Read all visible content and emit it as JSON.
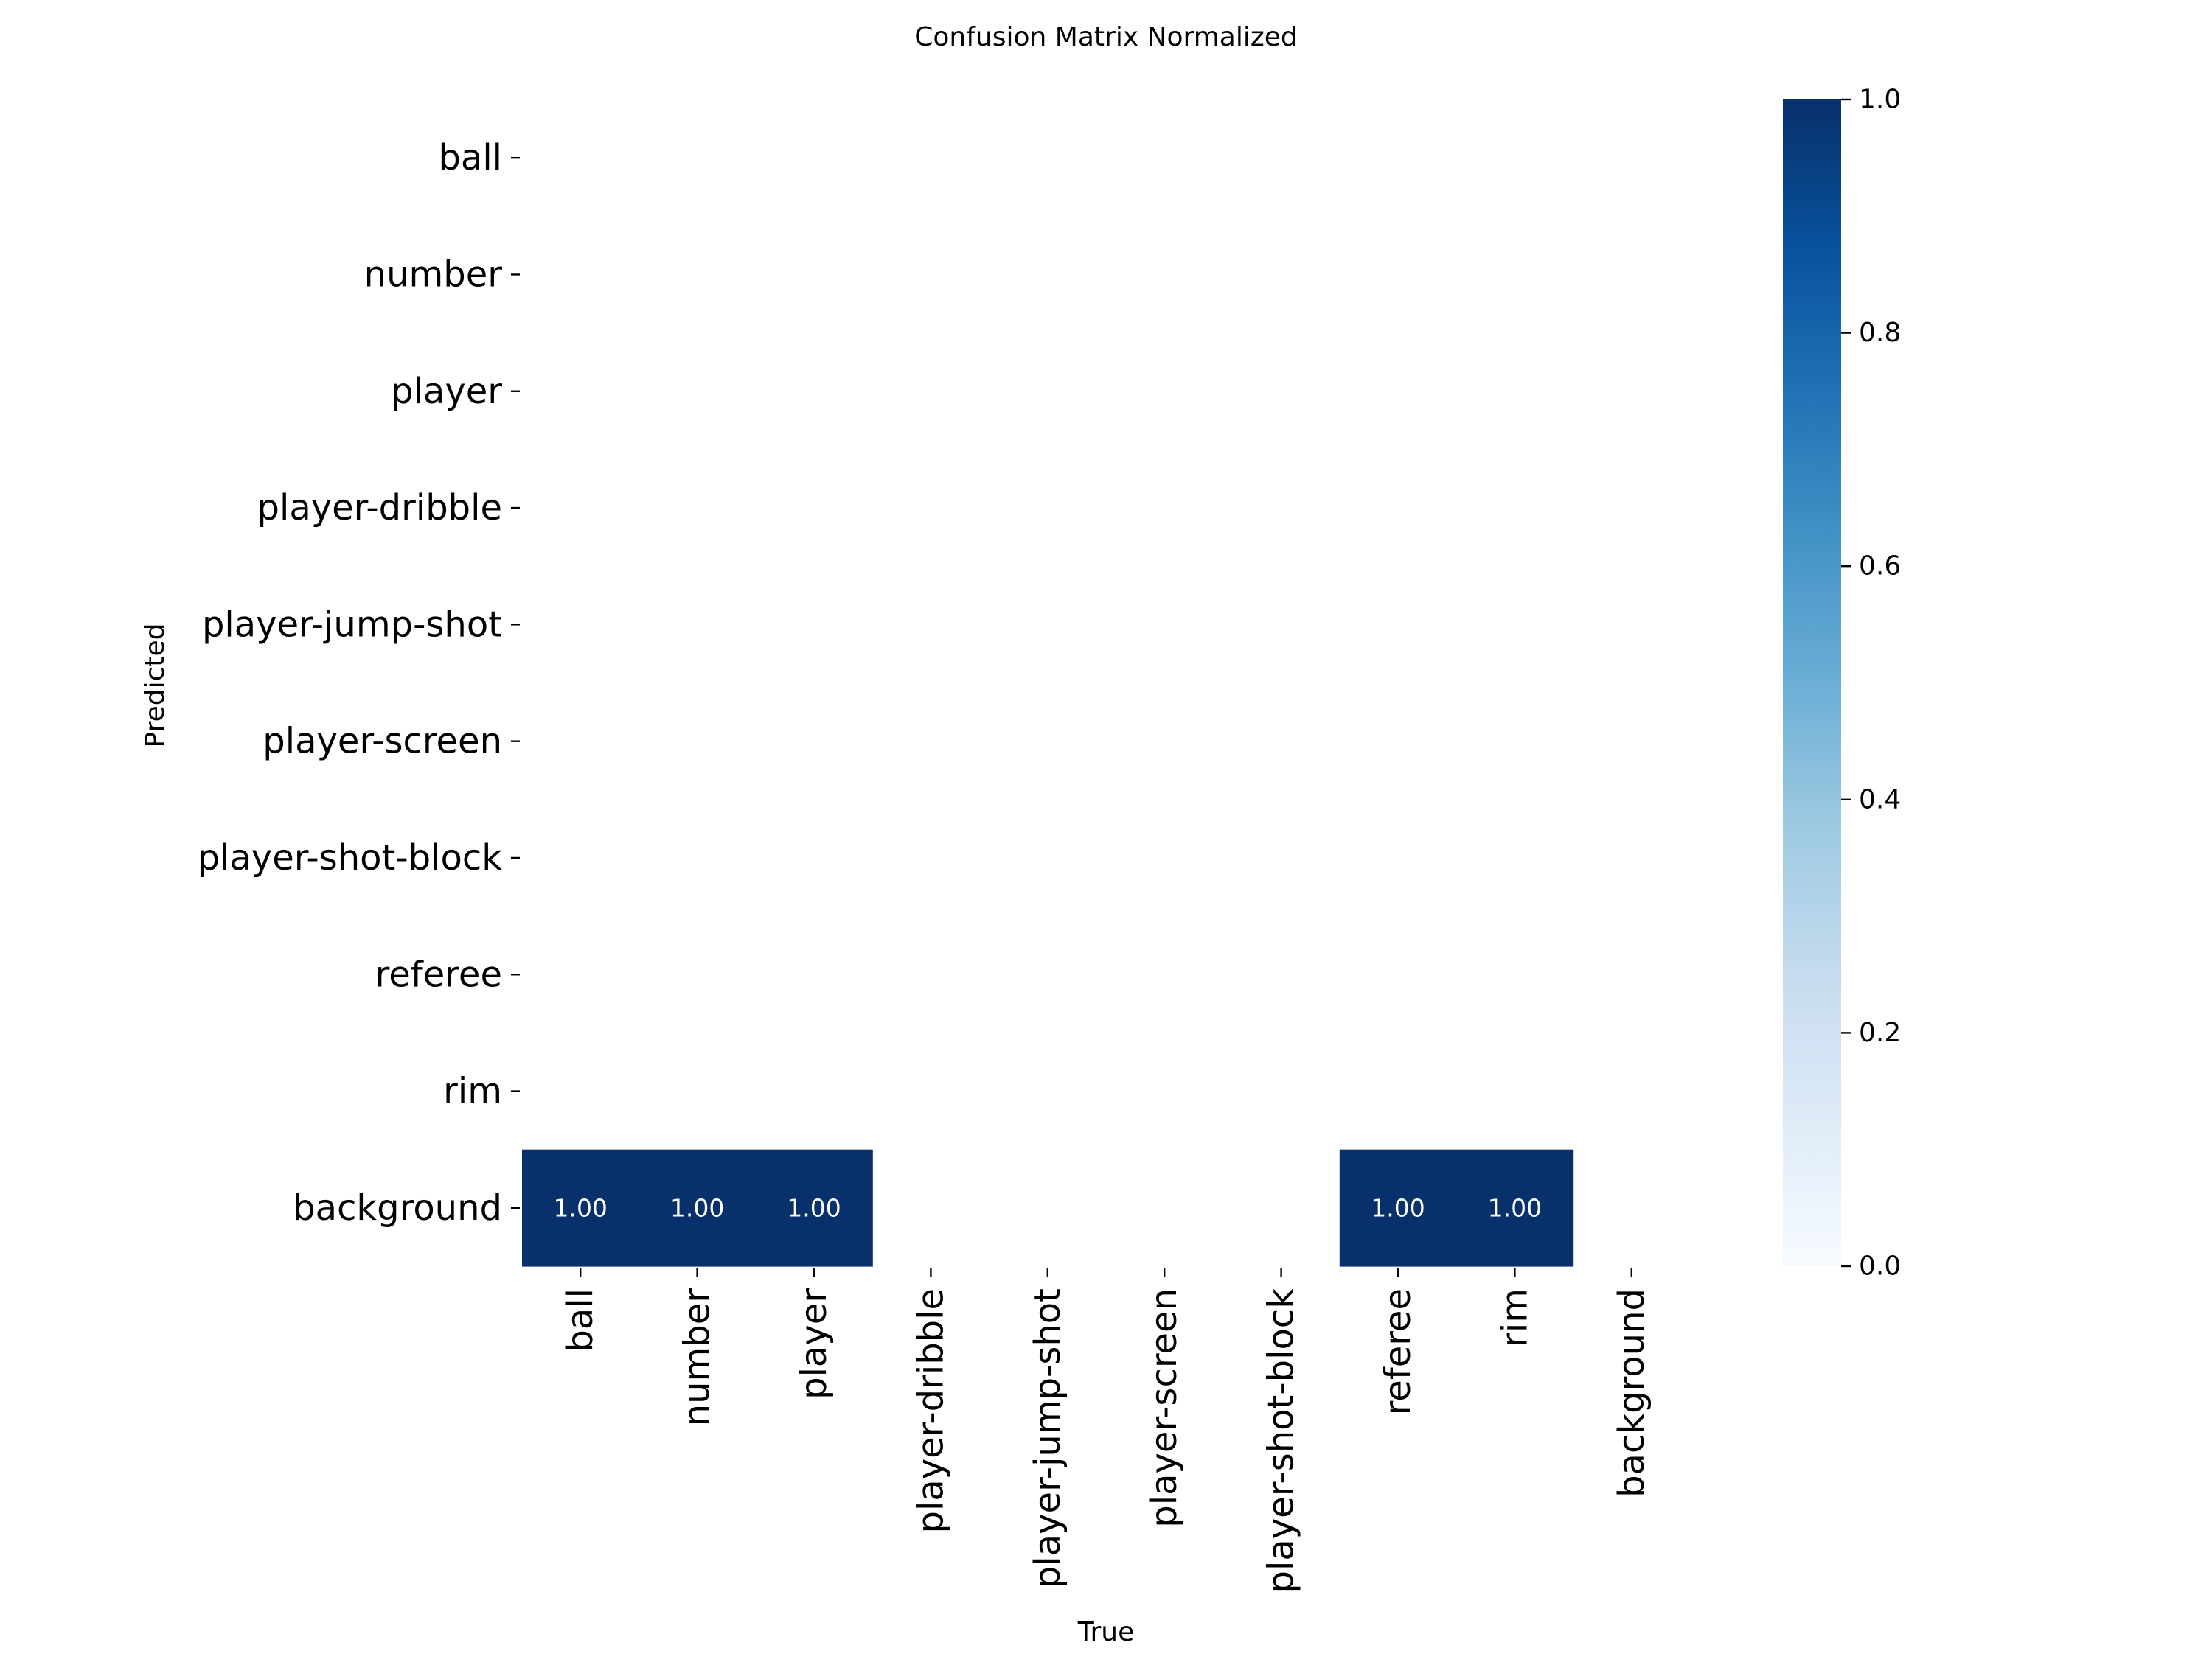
{
  "chart_data": {
    "type": "heatmap",
    "title": "Confusion Matrix Normalized",
    "xlabel": "True",
    "ylabel": "Predicted",
    "x_categories": [
      "ball",
      "number",
      "player",
      "player-dribble",
      "player-jump-shot",
      "player-screen",
      "player-shot-block",
      "referee",
      "rim",
      "background"
    ],
    "y_categories": [
      "ball",
      "number",
      "player",
      "player-dribble",
      "player-jump-shot",
      "player-screen",
      "player-shot-block",
      "referee",
      "rim",
      "background"
    ],
    "cells": [
      {
        "row": "background",
        "col": "ball",
        "value": 1.0,
        "label": "1.00"
      },
      {
        "row": "background",
        "col": "number",
        "value": 1.0,
        "label": "1.00"
      },
      {
        "row": "background",
        "col": "player",
        "value": 1.0,
        "label": "1.00"
      },
      {
        "row": "background",
        "col": "referee",
        "value": 1.0,
        "label": "1.00"
      },
      {
        "row": "background",
        "col": "rim",
        "value": 1.0,
        "label": "1.00"
      }
    ],
    "colorbar": {
      "range": [
        0.0,
        1.0
      ],
      "ticks": [
        "0.0",
        "0.2",
        "0.4",
        "0.6",
        "0.8",
        "1.0"
      ],
      "colormap": "Blues",
      "color_low": "#f7fbff",
      "color_high": "#08306b"
    },
    "grid": false
  }
}
